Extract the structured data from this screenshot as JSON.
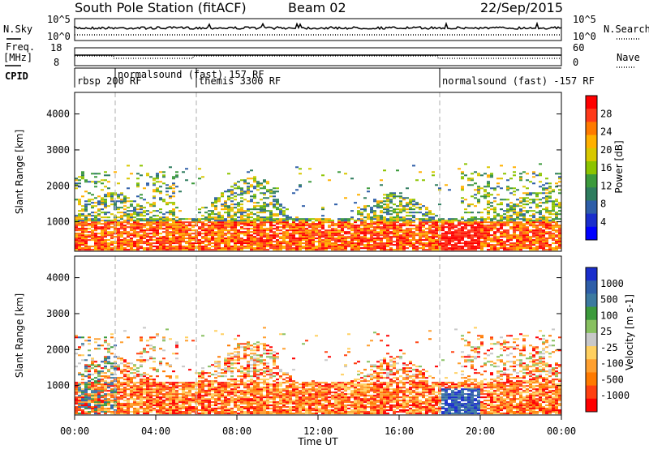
{
  "header": {
    "station": "South Pole Station (fitACF)",
    "beam": "Beam 02",
    "date": "22/Sep/2015"
  },
  "aux_panels": {
    "nsky_label": "N.Sky",
    "nsearch_label": "N.Search",
    "nsky_ticks": [
      "10^5",
      "10^0"
    ],
    "nsearch_ticks": [
      "10^5",
      "10^0"
    ],
    "freq_label_1": "Freq.",
    "freq_label_2": "[MHz]",
    "freq_ticks": [
      "18",
      "8"
    ],
    "nave_label": "Nave",
    "nave_ticks": [
      "60",
      "0"
    ],
    "cpid_label": "CPID"
  },
  "cpid_segments": [
    {
      "label": "rbsp 200 RF",
      "start_hour": 0.0
    },
    {
      "label": "normalsound (fast) 157 RF",
      "start_hour": 2.0
    },
    {
      "label": "themis 3300 RF",
      "start_hour": 6.0
    },
    {
      "label": "normalsound (fast) -157 RF",
      "start_hour": 18.0
    }
  ],
  "x_axis": {
    "label": "Time UT",
    "ticks": [
      "00:00",
      "04:00",
      "08:00",
      "12:00",
      "16:00",
      "20:00",
      "00:00"
    ],
    "tick_hours": [
      0,
      4,
      8,
      12,
      16,
      20,
      24
    ],
    "range_hours": [
      0,
      24
    ]
  },
  "dashed_lines_hours": [
    2,
    6,
    18
  ],
  "chart_data": [
    {
      "type": "heatmap",
      "quantity": "Power",
      "ylabel": "Slant Range [km]",
      "ylim": [
        180,
        4600
      ],
      "yticks": [
        1000,
        2000,
        3000,
        4000
      ],
      "colorbar_label": "Power [dB]",
      "colorbar_ticks": [
        "28",
        "24",
        "20",
        "16",
        "12",
        "8",
        "4"
      ],
      "colorbar_colors": [
        "#ff0000",
        "#ff3a1a",
        "#ff7a00",
        "#ffb000",
        "#d8c800",
        "#8cc400",
        "#3c9a3c",
        "#2e7c5e",
        "#2e5ea8",
        "#1a2ecc",
        "#0000ff"
      ]
    },
    {
      "type": "heatmap",
      "quantity": "Velocity",
      "ylabel": "Slant Range [km]",
      "ylim": [
        180,
        4600
      ],
      "yticks": [
        1000,
        2000,
        3000,
        4000
      ],
      "colorbar_label": "Velocity [m s-1]",
      "colorbar_ticks": [
        "1000",
        "500",
        "100",
        "25",
        "-25",
        "-100",
        "-500",
        "-1000"
      ],
      "colorbar_colors": [
        "#1a2ecc",
        "#2e5ea8",
        "#3c7aa0",
        "#3c9a3c",
        "#88c060",
        "#c8c8c8",
        "#ffd060",
        "#ffa030",
        "#ff7a00",
        "#ff4010",
        "#ff0000"
      ]
    }
  ]
}
